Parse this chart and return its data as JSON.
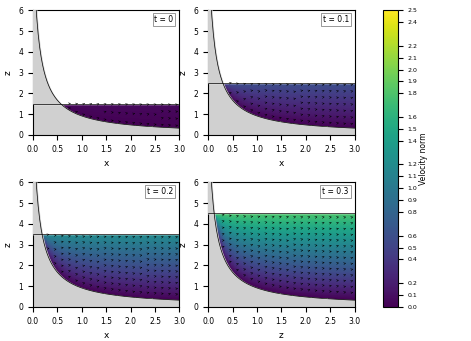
{
  "times": [
    0.0,
    0.1,
    0.2,
    0.3
  ],
  "time_labels": [
    "t = 0",
    "t = 0.1",
    "t = 0.2",
    "t = 0.3"
  ],
  "x_label": "x",
  "z_label": "z",
  "xlim": [
    0,
    3
  ],
  "ylim": [
    0,
    6
  ],
  "yticks": [
    0,
    1,
    2,
    3,
    4,
    5,
    6
  ],
  "xticks": [
    0.0,
    0.5,
    1.0,
    1.5,
    2.0,
    2.5,
    3.0
  ],
  "alpha_param": 1.0,
  "beta_param": 0.1,
  "b0": -1.0,
  "t0_minus_t1": 2.0,
  "c0": 1.2,
  "vmin": 0.0,
  "vmax": 2.5,
  "colorbar_label": "Velocity norm",
  "colormap": "viridis",
  "gray_color": "#d0d0d0",
  "figsize": [
    4.71,
    3.41
  ],
  "dpi": 100,
  "water_levels": [
    1.5,
    2.5,
    3.5,
    4.5
  ],
  "cb_ticks": [
    0.0,
    0.1,
    0.2,
    0.4,
    0.5,
    0.6,
    0.8,
    0.9,
    1.0,
    1.1,
    1.2,
    1.4,
    1.5,
    1.6,
    1.8,
    1.9,
    2.0,
    2.1,
    2.2,
    2.4,
    2.5
  ]
}
